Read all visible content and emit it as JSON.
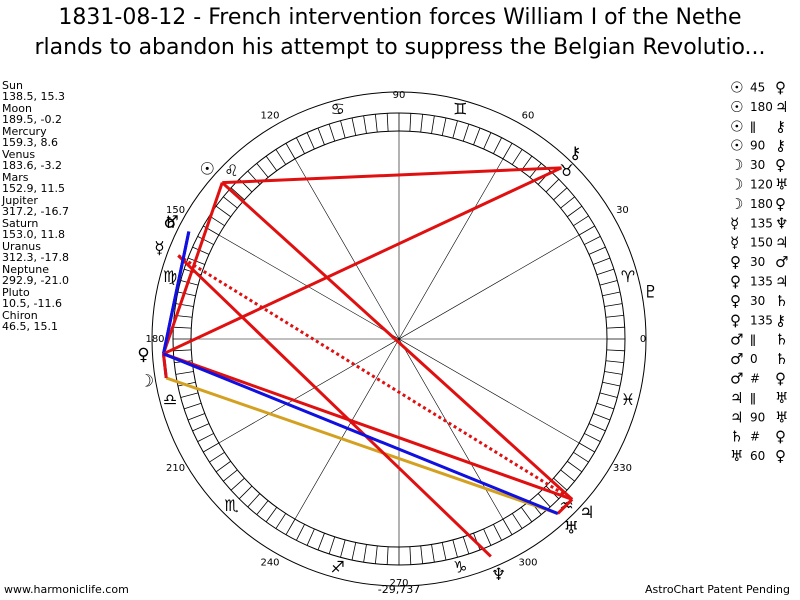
{
  "header": {
    "title_lines": [
      "1831-08-12 - French intervention forces William I of the Nethe",
      "rlands to abandon his attempt to suppress the Belgian Revolutio..."
    ]
  },
  "planets": [
    {
      "name": "Sun",
      "coords": "138.5, 15.3",
      "glyph": "☉"
    },
    {
      "name": "Moon",
      "coords": "189.5, -0.2",
      "glyph": "☽"
    },
    {
      "name": "Mercury",
      "coords": "159.3, 8.6",
      "glyph": "☿"
    },
    {
      "name": "Venus",
      "coords": "183.6, -3.2",
      "glyph": "♀"
    },
    {
      "name": "Mars",
      "coords": "152.9, 11.5",
      "glyph": "♂"
    },
    {
      "name": "Jupiter",
      "coords": "317.2, -16.7",
      "glyph": "♃"
    },
    {
      "name": "Saturn",
      "coords": "153.0, 11.8",
      "glyph": "♄"
    },
    {
      "name": "Uranus",
      "coords": "312.3, -17.8",
      "glyph": "♅"
    },
    {
      "name": "Neptune",
      "coords": "292.9, -21.0",
      "glyph": "♆"
    },
    {
      "name": "Pluto",
      "coords": "10.5, -11.6",
      "glyph": "♇"
    },
    {
      "name": "Chiron",
      "coords": "46.5, 15.1",
      "glyph": "⚷"
    }
  ],
  "aspects": [
    [
      "☉",
      "45",
      "♀"
    ],
    [
      "☉",
      "180",
      "♃"
    ],
    [
      "☉",
      "ǁ",
      "⚷"
    ],
    [
      "☉",
      "90",
      "⚷"
    ],
    [
      "☽",
      "30",
      "♀"
    ],
    [
      "☽",
      "120",
      "♅"
    ],
    [
      "☽",
      "180",
      "♀"
    ],
    [
      "☿",
      "135",
      "♆"
    ],
    [
      "☿",
      "150",
      "♃"
    ],
    [
      "♀",
      "30",
      "♂"
    ],
    [
      "♀",
      "135",
      "♃"
    ],
    [
      "♀",
      "30",
      "♄"
    ],
    [
      "♀",
      "135",
      "⚷"
    ],
    [
      "♂",
      "ǁ",
      "♄"
    ],
    [
      "♂",
      "0",
      "♄"
    ],
    [
      "♂",
      "#",
      "♀"
    ],
    [
      "♃",
      "ǁ",
      "♅"
    ],
    [
      "♃",
      "90",
      "♅"
    ],
    [
      "♄",
      "#",
      "♀"
    ],
    [
      "♅",
      "60",
      "♀"
    ]
  ],
  "signs": [
    "♈",
    "♉",
    "♊",
    "♋",
    "♌",
    "♍",
    "♎",
    "♏",
    "♐",
    "♑",
    "♒",
    "♓"
  ],
  "degree_labels": [
    "0",
    "30",
    "60",
    "90",
    "120",
    "150",
    "180",
    "210",
    "240",
    "270",
    "300",
    "330"
  ],
  "count": "-29,737",
  "footer": {
    "left": "www.harmoniclife.com",
    "right": "AstroChart Patent Pending"
  }
}
